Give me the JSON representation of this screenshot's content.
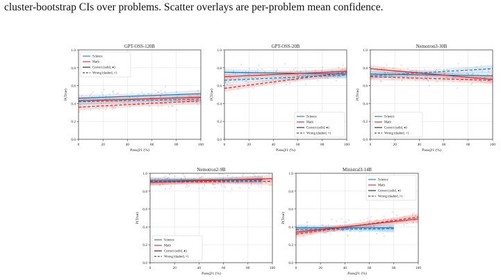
{
  "caption": "cluster-bootstrap CIs over problems. Scatter overlays are per-problem mean confidence.",
  "colors": {
    "science": "#1f77b4",
    "math": "#d62728",
    "grid": "#e3e3e3",
    "axis": "#333333"
  },
  "chart_data": [
    {
      "type": "line",
      "title": "GPT-OSS-120B",
      "xlabel": "Pass@1 (%)",
      "ylabel": "P(True)",
      "xlim": [
        0,
        100
      ],
      "ylim": [
        0,
        1.0
      ],
      "xticks": [
        "0",
        "20",
        "40",
        "60",
        "80",
        "100"
      ],
      "yticks": [
        "0.0",
        "0.2",
        "0.4",
        "0.6",
        "0.8",
        "1.0"
      ],
      "grid": true,
      "legend_position": "top-left",
      "legend": [
        "Science",
        "Math",
        "Correct (solid, ●)",
        "Wrong (dashed, ×)"
      ],
      "series": [
        {
          "subject": "science",
          "outcome": "correct",
          "x": [
            0,
            100
          ],
          "y": [
            0.46,
            0.51
          ]
        },
        {
          "subject": "science",
          "outcome": "wrong",
          "x": [
            0,
            100
          ],
          "y": [
            0.42,
            0.45
          ]
        },
        {
          "subject": "math",
          "outcome": "correct",
          "x": [
            0,
            100
          ],
          "y": [
            0.43,
            0.47
          ]
        },
        {
          "subject": "math",
          "outcome": "wrong",
          "x": [
            0,
            100
          ],
          "y": [
            0.36,
            0.43
          ]
        }
      ]
    },
    {
      "type": "line",
      "title": "GPT-OSS-20B",
      "xlabel": "Pass@1 (%)",
      "ylabel": "P(True)",
      "xlim": [
        0,
        100
      ],
      "ylim": [
        0,
        1.0
      ],
      "xticks": [
        "0",
        "20",
        "40",
        "60",
        "80",
        "100"
      ],
      "yticks": [
        "0.0",
        "0.2",
        "0.4",
        "0.6",
        "0.8",
        "1.0"
      ],
      "grid": true,
      "legend_position": "bottom-right",
      "legend": [
        "Science",
        "Math",
        "Correct (solid, ●)",
        "Wrong (dashed, ×)"
      ],
      "series": [
        {
          "subject": "science",
          "outcome": "correct",
          "x": [
            0,
            100
          ],
          "y": [
            0.75,
            0.73
          ]
        },
        {
          "subject": "science",
          "outcome": "wrong",
          "x": [
            0,
            100
          ],
          "y": [
            0.66,
            0.72
          ]
        },
        {
          "subject": "math",
          "outcome": "correct",
          "x": [
            0,
            100
          ],
          "y": [
            0.7,
            0.76
          ]
        },
        {
          "subject": "math",
          "outcome": "wrong",
          "x": [
            0,
            100
          ],
          "y": [
            0.57,
            0.75
          ]
        }
      ]
    },
    {
      "type": "line",
      "title": "Nemotron3-30B",
      "xlabel": "Pass@1 (%)",
      "ylabel": "P(True)",
      "xlim": [
        0,
        100
      ],
      "ylim": [
        0,
        1.0
      ],
      "xticks": [
        "0",
        "20",
        "40",
        "60",
        "80",
        "100"
      ],
      "yticks": [
        "0.0",
        "0.2",
        "0.4",
        "0.6",
        "0.8",
        "1.0"
      ],
      "grid": true,
      "legend_position": "bottom-left",
      "legend": [
        "Science",
        "Math",
        "Correct (solid, ●)",
        "Wrong (dashed, ×)"
      ],
      "series": [
        {
          "subject": "science",
          "outcome": "correct",
          "x": [
            0,
            100
          ],
          "y": [
            0.73,
            0.71
          ]
        },
        {
          "subject": "science",
          "outcome": "wrong",
          "x": [
            0,
            100
          ],
          "y": [
            0.71,
            0.79
          ]
        },
        {
          "subject": "math",
          "outcome": "correct",
          "x": [
            0,
            100
          ],
          "y": [
            0.79,
            0.67
          ]
        },
        {
          "subject": "math",
          "outcome": "wrong",
          "x": [
            0,
            100
          ],
          "y": [
            0.7,
            0.66
          ]
        }
      ]
    },
    {
      "type": "line",
      "title": "Nemotron2-9B",
      "xlabel": "Pass@1 (%)",
      "ylabel": "P(True)",
      "xlim": [
        0,
        100
      ],
      "ylim": [
        0,
        1.0
      ],
      "xticks": [
        "0",
        "20",
        "40",
        "60",
        "80",
        "100"
      ],
      "yticks": [
        "0.0",
        "0.2",
        "0.4",
        "0.6",
        "0.8",
        "1.0"
      ],
      "grid": true,
      "legend_position": "bottom-left",
      "legend": [
        "Science",
        "Math",
        "Correct (solid, ●)",
        "Wrong (dashed, ×)"
      ],
      "series": [
        {
          "subject": "science",
          "outcome": "correct",
          "x": [
            0,
            92
          ],
          "y": [
            0.92,
            0.93
          ]
        },
        {
          "subject": "science",
          "outcome": "wrong",
          "x": [
            0,
            92
          ],
          "y": [
            0.91,
            0.92
          ]
        },
        {
          "subject": "math",
          "outcome": "correct",
          "x": [
            0,
            100
          ],
          "y": [
            0.9,
            0.94
          ]
        },
        {
          "subject": "math",
          "outcome": "wrong",
          "x": [
            0,
            100
          ],
          "y": [
            0.9,
            0.91
          ]
        }
      ]
    },
    {
      "type": "line",
      "title": "Ministral3-14B",
      "xlabel": "Pass@1 (%)",
      "ylabel": "P(True)",
      "xlim": [
        0,
        100
      ],
      "ylim": [
        0,
        1.0
      ],
      "xticks": [
        "0",
        "20",
        "40",
        "60",
        "80",
        "100"
      ],
      "yticks": [
        "0.0",
        "0.2",
        "0.4",
        "0.6",
        "0.8",
        "1.0"
      ],
      "grid": true,
      "legend_position": "top-right",
      "legend": [
        "Science",
        "Math",
        "Correct (solid, ●)",
        "Wrong (dashed, ×)"
      ],
      "series": [
        {
          "subject": "science",
          "outcome": "correct",
          "x": [
            0,
            80
          ],
          "y": [
            0.39,
            0.39
          ]
        },
        {
          "subject": "science",
          "outcome": "wrong",
          "x": [
            0,
            80
          ],
          "y": [
            0.37,
            0.38
          ]
        },
        {
          "subject": "math",
          "outcome": "correct",
          "x": [
            0,
            100
          ],
          "y": [
            0.34,
            0.49
          ]
        },
        {
          "subject": "math",
          "outcome": "wrong",
          "x": [
            0,
            100
          ],
          "y": [
            0.32,
            0.51
          ]
        }
      ]
    }
  ]
}
